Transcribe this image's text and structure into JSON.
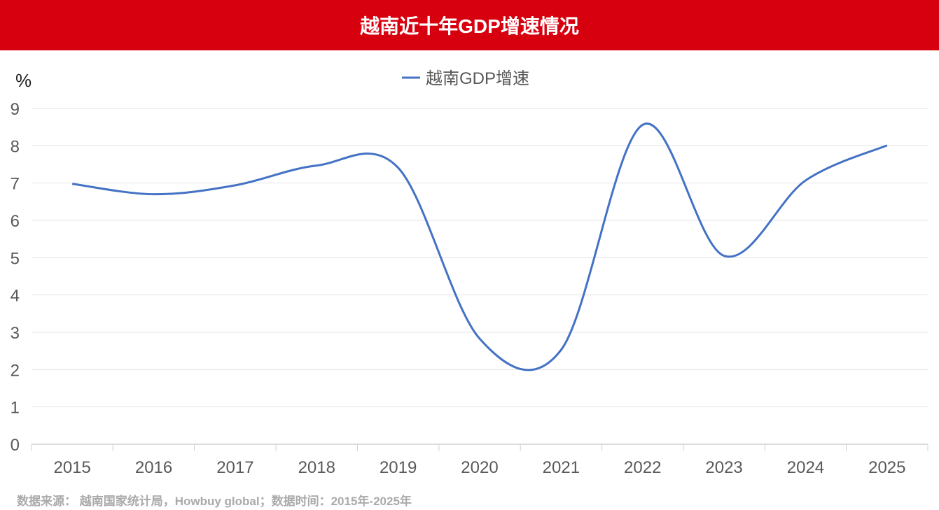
{
  "title": "越南近十年GDP增速情况",
  "footer": "数据来源：  越南国家统计局，Howbuy global；数据时间：2015年-2025年",
  "chart_data": {
    "type": "line",
    "title": "越南近十年GDP增速情况",
    "ylabel": "%",
    "xlabel": "",
    "categories": [
      "2015",
      "2016",
      "2017",
      "2018",
      "2019",
      "2020",
      "2021",
      "2022",
      "2023",
      "2024",
      "2025"
    ],
    "series": [
      {
        "name": "越南GDP增速",
        "color": "#4472c4",
        "values": [
          6.98,
          6.7,
          6.94,
          7.47,
          7.41,
          2.83,
          2.53,
          8.56,
          5.05,
          7.07,
          8.01
        ]
      }
    ],
    "ylim": [
      0,
      9
    ],
    "yticks": [
      "0",
      "1",
      "2",
      "3",
      "4",
      "5",
      "6",
      "7",
      "8",
      "9"
    ],
    "grid": true,
    "legend": "top-center"
  }
}
